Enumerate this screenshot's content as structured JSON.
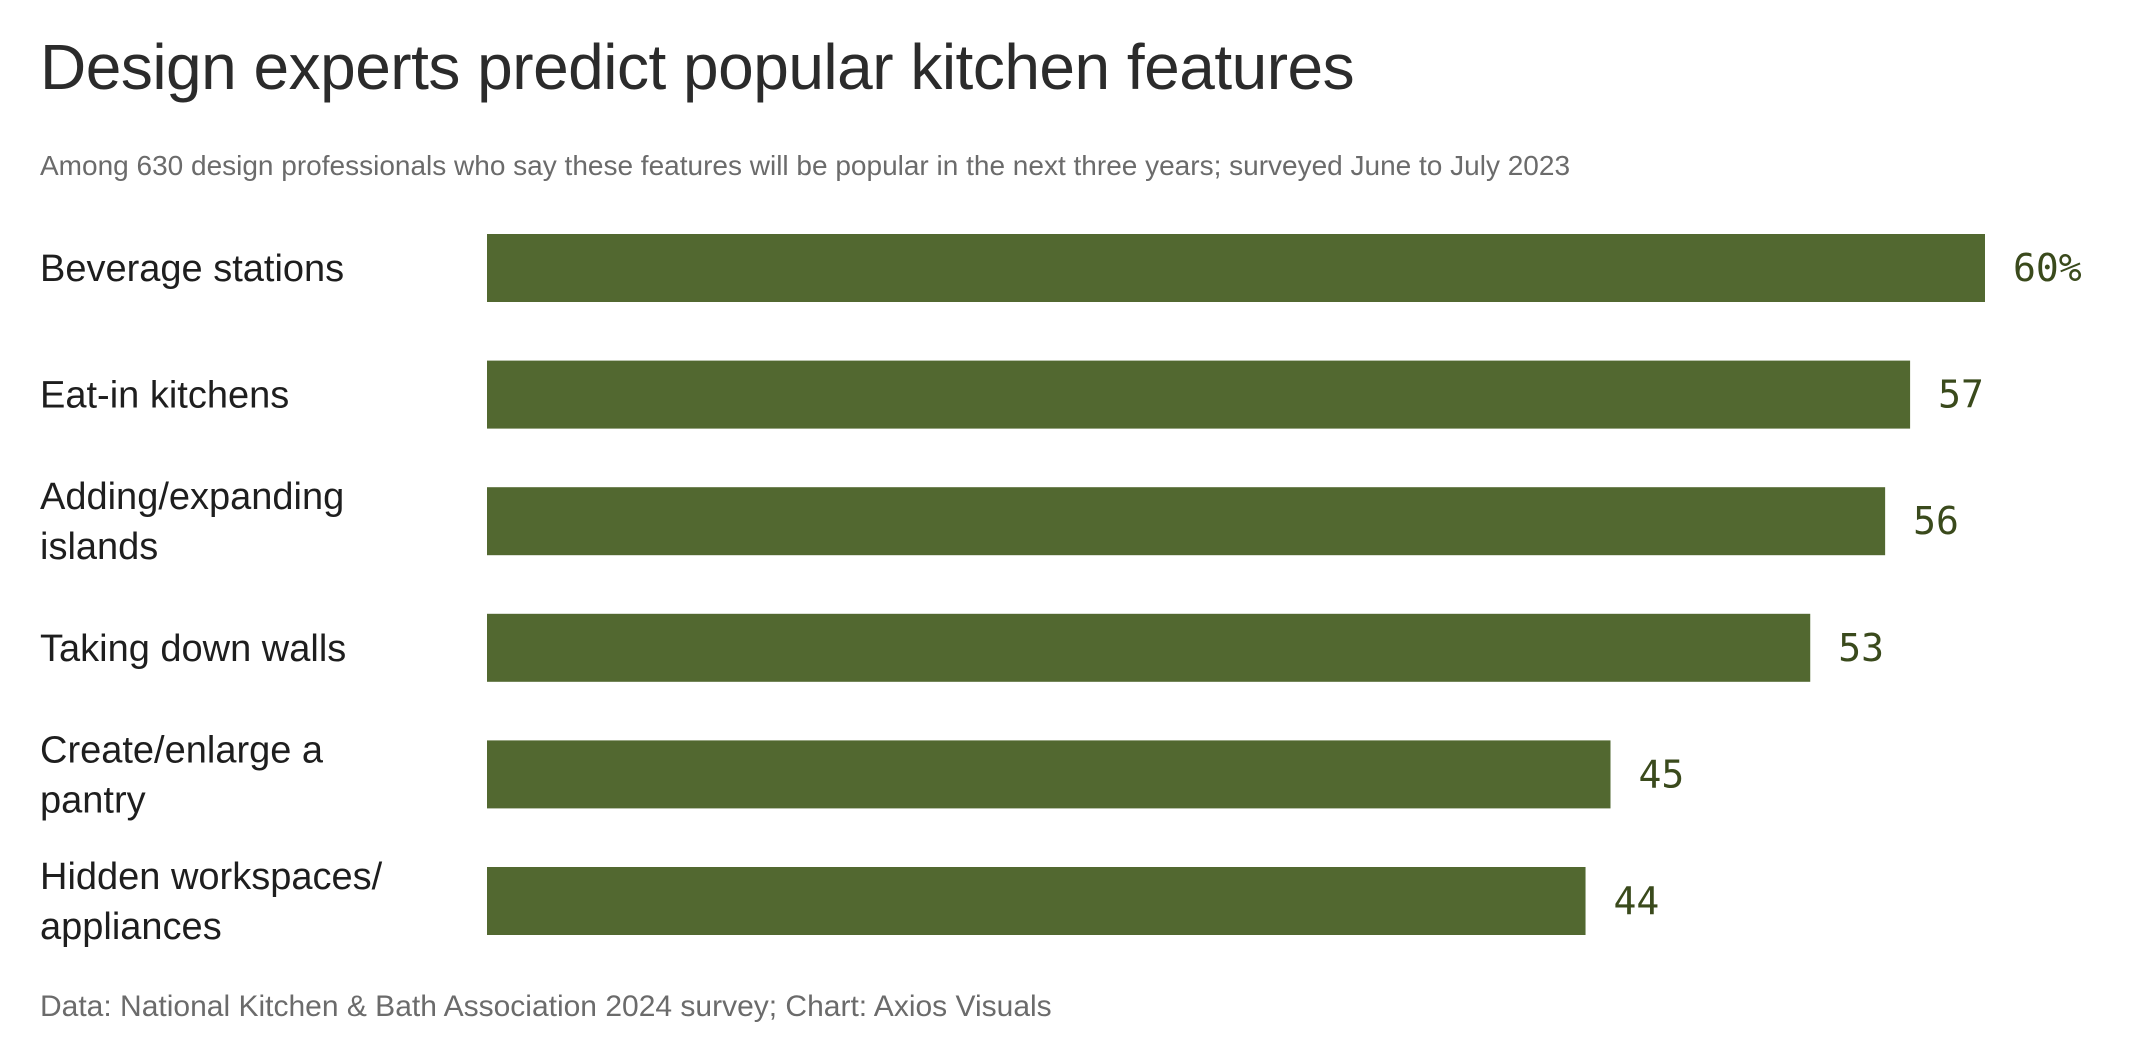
{
  "title": "Design experts predict popular kitchen features",
  "subtitle": "Among 630 design professionals who say these features will be popular in the next three years; surveyed June to July 2023",
  "footer": "Data: National Kitchen & Bath Association 2024 survey; Chart: Axios Visuals",
  "colors": {
    "bar": "#526830"
  },
  "chart_data": {
    "type": "bar",
    "orientation": "horizontal",
    "title": "Design experts predict popular kitchen features",
    "subtitle": "Among 630 design professionals who say these features will be popular in the next three years; surveyed June to July 2023",
    "categories": [
      "Beverage stations",
      "Eat-in kitchens",
      "Adding/expanding islands",
      "Taking down walls",
      "Create/enlarge a pantry",
      "Hidden workspaces/ appliances"
    ],
    "category_lines": [
      [
        "Beverage stations"
      ],
      [
        "Eat-in kitchens"
      ],
      [
        "Adding/expanding",
        "islands"
      ],
      [
        "Taking down walls"
      ],
      [
        "Create/enlarge a",
        "pantry"
      ],
      [
        "Hidden workspaces/",
        "appliances"
      ]
    ],
    "values": [
      60,
      57,
      56,
      53,
      45,
      44
    ],
    "value_labels": [
      "60%",
      "57",
      "56",
      "53",
      "45",
      "44"
    ],
    "xlim": [
      0,
      60
    ],
    "grid": false,
    "legend": "none"
  }
}
